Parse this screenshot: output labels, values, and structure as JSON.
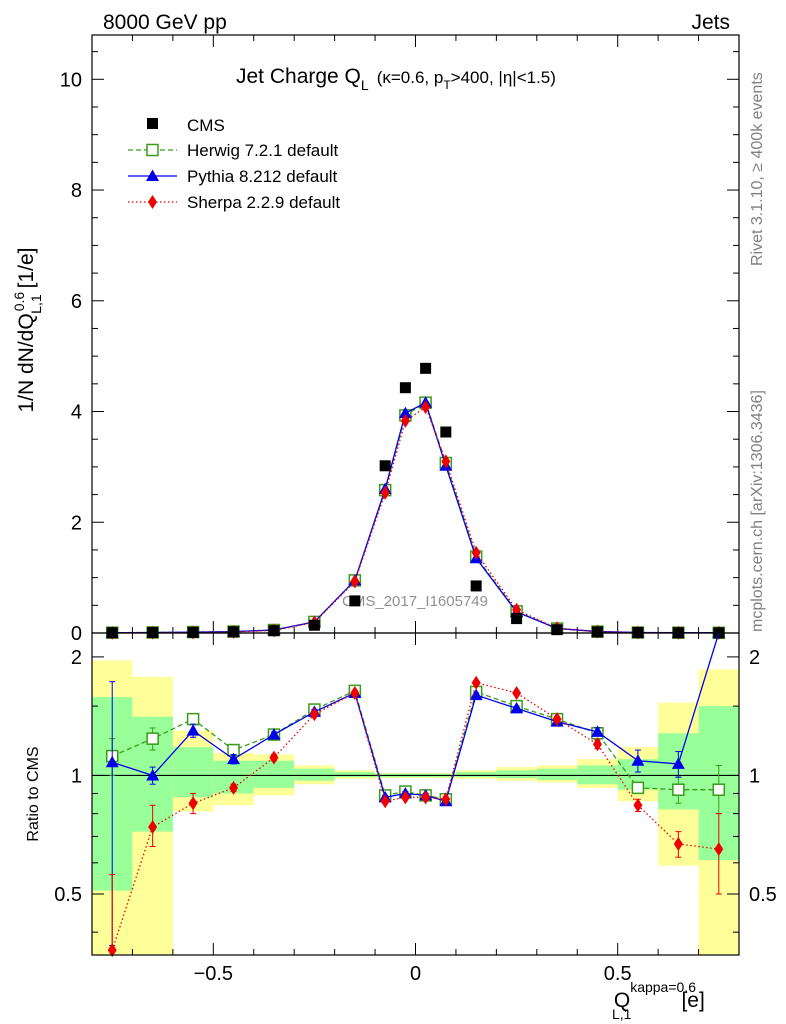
{
  "header": {
    "energy": "8000 GeV pp",
    "process": "Jets",
    "side_rivet": "Rivet 3.1.10, ≥ 400k events",
    "side_mcplots": "mcplots.cern.ch [arXiv:1306.3436]",
    "analysis": "CMS_2017_I1605749"
  },
  "plot_title": {
    "main": "Jet Charge Q",
    "main_sub": "L",
    "cond_a": "(κ=0.6, p",
    "cond_sub": "T",
    "cond_b": ">400, |η|<1.5)"
  },
  "colors": {
    "cms": "#000000",
    "herwig": "#3a9a1a",
    "pythia": "#0000ee",
    "sherpa": "#ee0000",
    "band_outer": "#ffff99",
    "band_inner": "#99ff99"
  },
  "chart_data": [
    {
      "type": "scatter",
      "panel": "main",
      "ylabel": "1/N dN/dQ",
      "ylabel_sup": "0.6",
      "ylabel_sub": "L,1",
      "ylabel_unit": "[1/e]",
      "xlim": [
        -0.8,
        0.8
      ],
      "ylim": [
        0,
        10.8
      ],
      "xticks": [
        -0.5,
        0,
        0.5
      ],
      "yticks": [
        0,
        2,
        4,
        6,
        8,
        10
      ],
      "x": [
        -0.75,
        -0.65,
        -0.55,
        -0.45,
        -0.35,
        -0.25,
        -0.15,
        -0.075,
        -0.025,
        0.025,
        0.075,
        0.15,
        0.25,
        0.35,
        0.45,
        0.55,
        0.65,
        0.75
      ],
      "series": [
        {
          "name": "CMS",
          "marker": "square",
          "values": [
            0.005,
            0.008,
            0.012,
            0.022,
            0.042,
            0.14,
            0.58,
            3.02,
            4.43,
            4.78,
            3.63,
            0.85,
            0.26,
            0.06,
            0.02,
            0.009,
            0.005,
            0.003
          ]
        },
        {
          "name": "Herwig 7.2.1 default",
          "marker": "open-square",
          "values": [
            0.006,
            0.01,
            0.017,
            0.026,
            0.054,
            0.2,
            0.95,
            2.58,
            3.93,
            4.16,
            3.07,
            1.38,
            0.39,
            0.08,
            0.025,
            0.008,
            0.005,
            0.003
          ]
        },
        {
          "name": "Pythia 8.212 default",
          "marker": "triangle",
          "values": [
            0.005,
            0.008,
            0.015,
            0.025,
            0.054,
            0.2,
            0.95,
            2.6,
            3.97,
            4.16,
            3.02,
            1.35,
            0.38,
            0.082,
            0.026,
            0.009,
            0.006,
            0.006
          ]
        },
        {
          "name": "Sherpa 2.2.9 default",
          "marker": "diamond",
          "values": [
            0.003,
            0.006,
            0.01,
            0.019,
            0.046,
            0.19,
            0.93,
            2.53,
            3.83,
            4.08,
            3.1,
            1.45,
            0.42,
            0.085,
            0.024,
            0.008,
            0.004,
            0.002
          ]
        }
      ]
    },
    {
      "type": "scatter",
      "panel": "ratio",
      "ylabel": "Ratio to CMS",
      "xlabel": "Q",
      "xlabel_sup": "kappa=0.6",
      "xlabel_sub": "L,1",
      "xlabel_unit": "[e]",
      "xlim": [
        -0.8,
        0.8
      ],
      "ylim": [
        0.35,
        2.3
      ],
      "xticks": [
        -0.5,
        0,
        0.5
      ],
      "xtick_labels": [
        "−0.5",
        "0",
        "0.5"
      ],
      "yticks": [
        0.5,
        1,
        2
      ],
      "ytick_labels": [
        "0.5",
        "1",
        "2"
      ],
      "reference": 1,
      "bins": [
        [
          -0.8,
          -0.7
        ],
        [
          -0.7,
          -0.6
        ],
        [
          -0.6,
          -0.5
        ],
        [
          -0.5,
          -0.4
        ],
        [
          -0.4,
          -0.3
        ],
        [
          -0.3,
          -0.2
        ],
        [
          -0.2,
          -0.1
        ],
        [
          -0.1,
          -0.05
        ],
        [
          -0.05,
          0
        ],
        [
          0,
          0.05
        ],
        [
          0.05,
          0.1
        ],
        [
          0.1,
          0.2
        ],
        [
          0.2,
          0.3
        ],
        [
          0.3,
          0.4
        ],
        [
          0.4,
          0.5
        ],
        [
          0.5,
          0.6
        ],
        [
          0.6,
          0.7
        ],
        [
          0.7,
          0.8
        ]
      ],
      "band_outer": [
        [
          0.35,
          1.96
        ],
        [
          0.35,
          1.78
        ],
        [
          0.81,
          1.3
        ],
        [
          0.84,
          1.14
        ],
        [
          0.89,
          1.13
        ],
        [
          0.95,
          1.06
        ],
        [
          0.98,
          1.03
        ],
        [
          0.985,
          1.015
        ],
        [
          0.985,
          1.015
        ],
        [
          0.985,
          1.015
        ],
        [
          0.985,
          1.015
        ],
        [
          0.98,
          1.03
        ],
        [
          0.97,
          1.05
        ],
        [
          0.96,
          1.06
        ],
        [
          0.93,
          1.1
        ],
        [
          0.86,
          1.18
        ],
        [
          0.59,
          1.53
        ],
        [
          0.35,
          1.86
        ]
      ],
      "band_inner": [
        [
          0.51,
          1.58
        ],
        [
          0.72,
          1.41
        ],
        [
          0.88,
          1.18
        ],
        [
          0.9,
          1.09
        ],
        [
          0.93,
          1.09
        ],
        [
          0.97,
          1.04
        ],
        [
          0.99,
          1.02
        ],
        [
          0.99,
          1.01
        ],
        [
          0.99,
          1.01
        ],
        [
          0.99,
          1.01
        ],
        [
          0.99,
          1.01
        ],
        [
          0.99,
          1.02
        ],
        [
          0.985,
          1.03
        ],
        [
          0.975,
          1.04
        ],
        [
          0.95,
          1.06
        ],
        [
          0.92,
          1.1
        ],
        [
          0.82,
          1.28
        ],
        [
          0.61,
          1.5
        ]
      ],
      "x": [
        -0.75,
        -0.65,
        -0.55,
        -0.45,
        -0.35,
        -0.25,
        -0.15,
        -0.075,
        -0.025,
        0.025,
        0.075,
        0.15,
        0.25,
        0.35,
        0.45,
        0.55,
        0.65,
        0.75
      ],
      "series": [
        {
          "name": "Herwig 7.2.1 default",
          "marker": "open-square",
          "values": [
            1.12,
            1.24,
            1.39,
            1.16,
            1.27,
            1.47,
            1.64,
            0.89,
            0.91,
            0.89,
            0.87,
            1.63,
            1.5,
            1.39,
            1.28,
            0.93,
            0.92,
            0.92
          ]
        },
        {
          "name": "Pythia 8.212 default",
          "marker": "triangle",
          "values": [
            1.08,
            1.0,
            1.3,
            1.1,
            1.27,
            1.45,
            1.62,
            0.88,
            0.9,
            0.89,
            0.86,
            1.6,
            1.48,
            1.37,
            1.29,
            1.09,
            1.07,
            2.3
          ]
        },
        {
          "name": "Sherpa 2.2.9 default",
          "marker": "diamond",
          "values": [
            0.36,
            0.74,
            0.85,
            0.93,
            1.11,
            1.43,
            1.62,
            0.86,
            0.88,
            0.88,
            0.87,
            1.72,
            1.62,
            1.39,
            1.2,
            0.84,
            0.67,
            0.65
          ]
        }
      ],
      "errors": {
        "Pythia 8.212 default": [
          [
            0.37,
            1.73
          ],
          [
            0.95,
            1.05
          ],
          [
            1.25,
            1.35
          ],
          [
            1.07,
            1.13
          ],
          [
            1.25,
            1.29
          ],
          [
            1.43,
            1.47
          ],
          [
            1.6,
            1.64
          ],
          [
            0.87,
            0.89
          ],
          [
            0.89,
            0.91
          ],
          [
            0.88,
            0.9
          ],
          [
            0.85,
            0.87
          ],
          [
            1.58,
            1.62
          ],
          [
            1.46,
            1.5
          ],
          [
            1.35,
            1.39
          ],
          [
            1.26,
            1.32
          ],
          [
            1.02,
            1.16
          ],
          [
            0.99,
            1.15
          ],
          [
            2.3,
            2.3
          ]
        ],
        "Herwig 7.2.1 default": [
          [
            1.0,
            1.24
          ],
          [
            1.16,
            1.32
          ],
          [
            1.35,
            1.43
          ],
          [
            1.14,
            1.18
          ],
          [
            1.25,
            1.29
          ],
          [
            1.45,
            1.49
          ],
          [
            1.62,
            1.66
          ],
          [
            0.88,
            0.9
          ],
          [
            0.9,
            0.92
          ],
          [
            0.88,
            0.9
          ],
          [
            0.86,
            0.88
          ],
          [
            1.61,
            1.65
          ],
          [
            1.48,
            1.52
          ],
          [
            1.37,
            1.41
          ],
          [
            1.25,
            1.31
          ],
          [
            0.9,
            0.96
          ],
          [
            0.85,
            0.99
          ],
          [
            0.8,
            1.06
          ]
        ],
        "Sherpa 2.2.9 default": [
          [
            0.35,
            0.56
          ],
          [
            0.66,
            0.84
          ],
          [
            0.8,
            0.9
          ],
          [
            0.91,
            0.95
          ],
          [
            1.09,
            1.13
          ],
          [
            1.41,
            1.45
          ],
          [
            1.6,
            1.64
          ],
          [
            0.85,
            0.87
          ],
          [
            0.87,
            0.89
          ],
          [
            0.87,
            0.89
          ],
          [
            0.86,
            0.88
          ],
          [
            1.7,
            1.74
          ],
          [
            1.6,
            1.64
          ],
          [
            1.37,
            1.41
          ],
          [
            1.17,
            1.23
          ],
          [
            0.81,
            0.87
          ],
          [
            0.62,
            0.72
          ],
          [
            0.5,
            0.8
          ]
        ]
      }
    }
  ]
}
